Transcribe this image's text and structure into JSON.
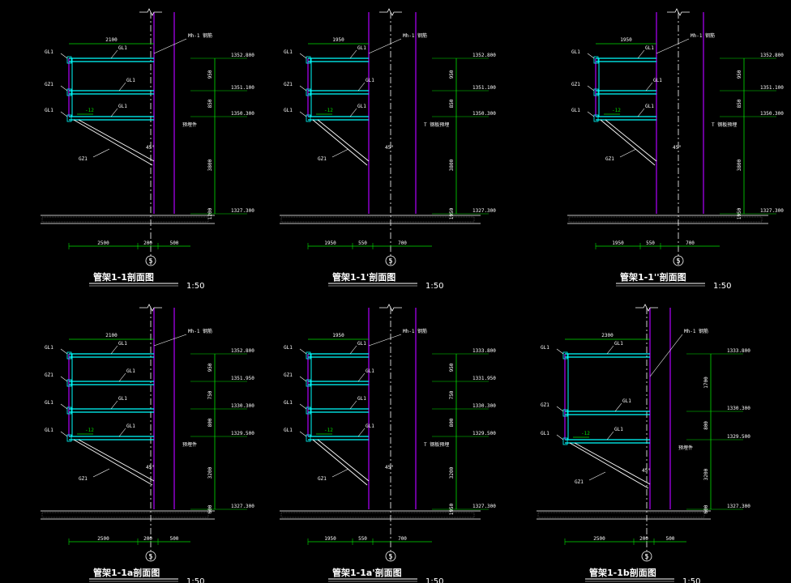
{
  "sections": [
    {
      "id": "s1",
      "title": "管架1-1剖面图",
      "scale": "1:50",
      "axis": "5",
      "top_dim": "2100",
      "bottom_dims": [
        "2500",
        "200",
        "500"
      ],
      "beam_labels": [
        "GL1",
        "GL1",
        "GL1"
      ],
      "col_labels": [
        "GZ1",
        "GZ1",
        "GZ1",
        "GZ1"
      ],
      "side_labels": [
        "GL1",
        "GZ1",
        "GL1",
        "GL1"
      ],
      "brace_label": "GZ1",
      "angle": "45°",
      "slope": "-12",
      "note_top": "Mh-1 钢筋",
      "note_mid": "预埋件",
      "elevations": [
        "1352.800",
        "1351.100",
        "1350.300",
        "1327.300"
      ],
      "vert_dims": [
        "950",
        "850",
        "3800",
        "1200"
      ],
      "base_dim": "300"
    },
    {
      "id": "s2",
      "title": "管架1-1'剖面图",
      "scale": "1:50",
      "axis": "5",
      "top_dim": "1950",
      "bottom_dims": [
        "1950",
        "550",
        "700"
      ],
      "beam_labels": [
        "GL1",
        "GL1",
        "GL1"
      ],
      "col_labels": [
        "GZ1",
        "GZ1",
        "GZ1",
        "GZ1"
      ],
      "side_labels": [
        "GL1",
        "GZ1",
        "GL1",
        "GL1"
      ],
      "brace_label": "GZ1",
      "angle": "45°",
      "slope": "-12",
      "note_top": "Mh-1 钢筋",
      "note_mid": "T 钢板预埋",
      "elevations": [
        "1352.800",
        "1351.100",
        "1350.300",
        "1327.300"
      ],
      "vert_dims": [
        "950",
        "850",
        "3800",
        "1950"
      ],
      "base_dim": "300"
    },
    {
      "id": "s3",
      "title": "管架1-1''剖面图",
      "scale": "1:50",
      "axis": "5",
      "top_dim": "1950",
      "bottom_dims": [
        "1950",
        "550",
        "700"
      ],
      "beam_labels": [
        "GL1",
        "GL1",
        "GL1"
      ],
      "col_labels": [
        "GZ1",
        "GZ1",
        "GZ1",
        "GZ1"
      ],
      "side_labels": [
        "GL1",
        "GZ1",
        "GL1",
        "GL1"
      ],
      "brace_label": "GZ1",
      "angle": "45°",
      "slope": "-12",
      "note_top": "Mh-1 钢筋",
      "note_mid": "T 钢板预埋",
      "elevations": [
        "1352.800",
        "1351.100",
        "1350.300",
        "1327.300"
      ],
      "vert_dims": [
        "950",
        "850",
        "3800",
        "1950"
      ],
      "base_dim": "300"
    },
    {
      "id": "s4",
      "title": "管架1-1a剖面图",
      "scale": "1:50",
      "axis": "5",
      "top_dim": "2100",
      "bottom_dims": [
        "2500",
        "200",
        "500"
      ],
      "beam_labels": [
        "GL1",
        "GL1",
        "GL1",
        "GL1"
      ],
      "col_labels": [
        "GZ1",
        "GZ1",
        "GZ1",
        "GZ1",
        "GZ1"
      ],
      "side_labels": [
        "GL1",
        "GZ1",
        "GL1",
        "GL1",
        "GL1"
      ],
      "brace_label": "GZ1",
      "angle": "45°",
      "slope": "-12",
      "note_top": "Mh-1 钢筋",
      "note_mid": "预埋件",
      "elevations": [
        "1352.800",
        "1351.950",
        "1330.300",
        "1329.500",
        "1327.300"
      ],
      "vert_dims": [
        "950",
        "750",
        "800",
        "3200",
        "600"
      ],
      "base_dim": "300"
    },
    {
      "id": "s5",
      "title": "管架1-1a'剖面图",
      "scale": "1:50",
      "axis": "5",
      "top_dim": "1950",
      "bottom_dims": [
        "1950",
        "550",
        "700"
      ],
      "beam_labels": [
        "GL1",
        "GL1",
        "GL1",
        "GL1"
      ],
      "col_labels": [
        "GZ1",
        "GZ1",
        "GZ1",
        "GZ1",
        "GZ1"
      ],
      "side_labels": [
        "GL1",
        "GZ1",
        "GL1",
        "GL1",
        "GL1"
      ],
      "brace_label": "GZ1",
      "angle": "45°",
      "slope": "-12",
      "note_top": "Mh-1 钢筋",
      "note_mid": "T 钢板预埋",
      "elevations": [
        "1333.800",
        "1331.950",
        "1330.300",
        "1329.500",
        "1327.300"
      ],
      "vert_dims": [
        "950",
        "750",
        "800",
        "3200",
        "1950"
      ],
      "base_dim": "300"
    },
    {
      "id": "s6",
      "title": "管架1-1b剖面图",
      "scale": "1:50",
      "axis": "5",
      "top_dim": "2300",
      "bottom_dims": [
        "2500",
        "200",
        "500"
      ],
      "beam_labels": [
        "GL1",
        "GL1",
        "GL1"
      ],
      "col_labels": [
        "GZ1",
        "GZ1",
        "GZ1"
      ],
      "side_labels": [
        "GL1",
        "GZ1",
        "GL1",
        "GL1"
      ],
      "brace_label": "GZ1",
      "angle": "45°",
      "slope": "-12",
      "note_top": "Mh-1 钢筋",
      "note_mid": "预埋件",
      "elevations": [
        "1333.800",
        "1330.300",
        "1329.500",
        "1327.300"
      ],
      "vert_dims": [
        "1700",
        "800",
        "3200",
        "600"
      ],
      "base_dim": "300"
    }
  ],
  "colors": {
    "background": "#000000",
    "beam": "#00ffff",
    "column": "#b000ff",
    "dimension": "#00e000",
    "line": "#ffffff",
    "axis_line": "#ffffff"
  }
}
